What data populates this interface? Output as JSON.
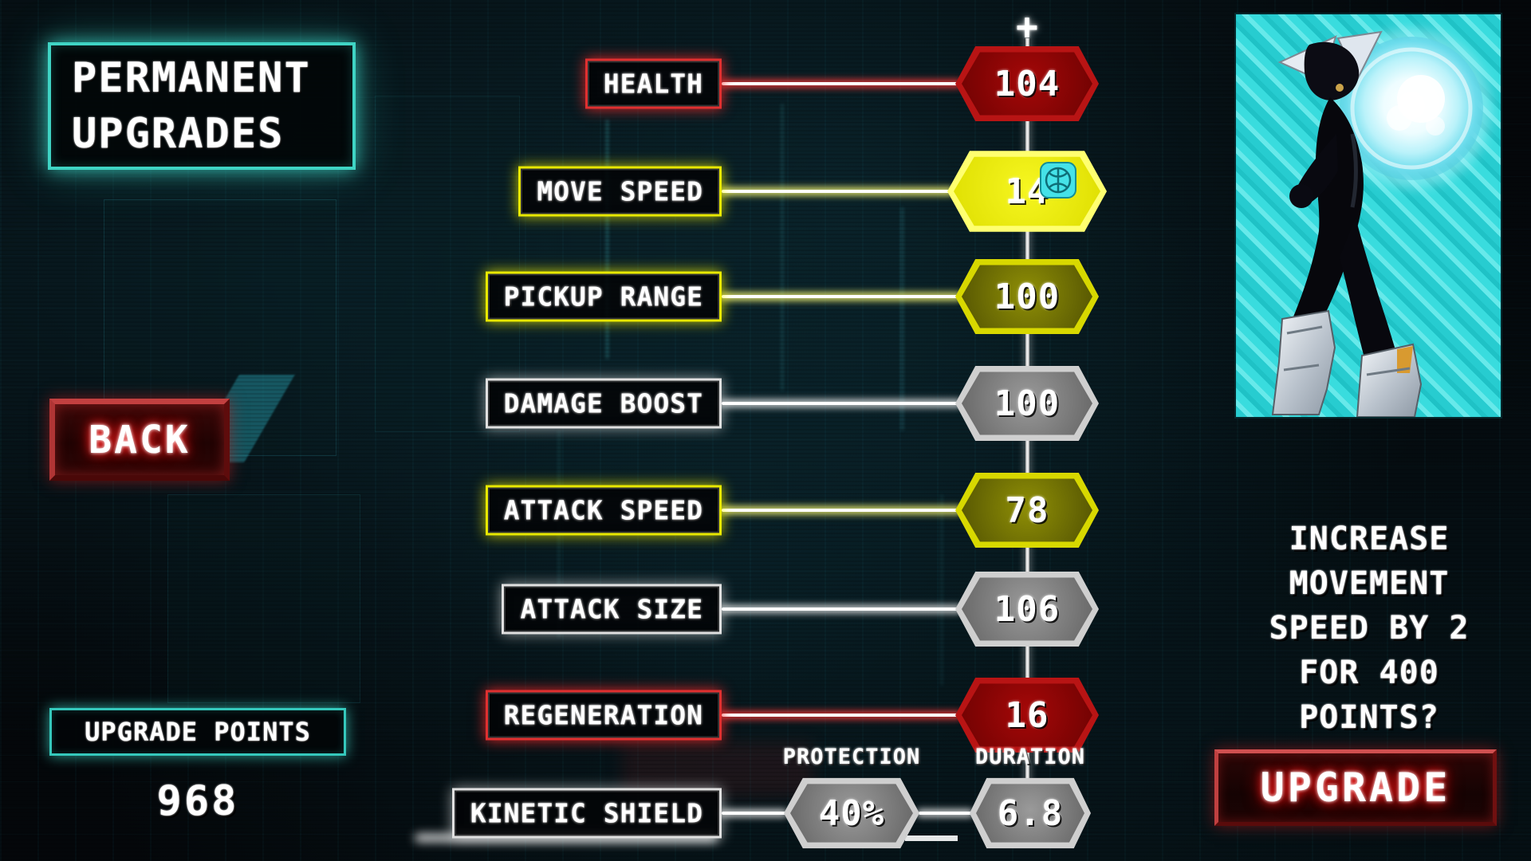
{
  "title": {
    "line1": "PERMANENT",
    "line2": "UPGRADES"
  },
  "back_button_label": "BACK",
  "upgrade_points": {
    "label": "UPGRADE POINTS",
    "value": "968"
  },
  "column_plus": "+",
  "stats": [
    {
      "id": "health",
      "label": "HEALTH",
      "value": "104",
      "color": "red"
    },
    {
      "id": "move-speed",
      "label": "MOVE SPEED",
      "value": "14",
      "color": "yellow",
      "selected": true,
      "cursor": true
    },
    {
      "id": "pickup-range",
      "label": "PICKUP RANGE",
      "value": "100",
      "color": "yellow"
    },
    {
      "id": "damage-boost",
      "label": "DAMAGE BOOST",
      "value": "100",
      "color": "gray"
    },
    {
      "id": "attack-speed",
      "label": "ATTACK SPEED",
      "value": "78",
      "color": "yellow"
    },
    {
      "id": "attack-size",
      "label": "ATTACK SIZE",
      "value": "106",
      "color": "gray"
    },
    {
      "id": "regeneration",
      "label": "REGENERATION",
      "value": "16",
      "color": "red"
    },
    {
      "id": "kinetic-shield",
      "label": "KINETIC SHIELD",
      "color": "gray",
      "sub_stats": [
        {
          "id": "protection",
          "label": "PROTECTION",
          "value": "40%"
        },
        {
          "id": "duration",
          "label": "DURATION",
          "value": "6.8"
        }
      ]
    }
  ],
  "selection_panel": {
    "description_lines": [
      "INCREASE",
      "MOVEMENT",
      "SPEED BY 2",
      "FOR 400",
      "POINTS?"
    ],
    "upgrade_button_label": "UPGRADE"
  },
  "colors": {
    "teal_accent": "#3fd4c4",
    "red_stat": "#b81414",
    "yellow_stat": "#e8e800",
    "gray_stat": "#d8d8d8",
    "button_red": "#c03030",
    "portrait_cyan": "#39dcde"
  }
}
